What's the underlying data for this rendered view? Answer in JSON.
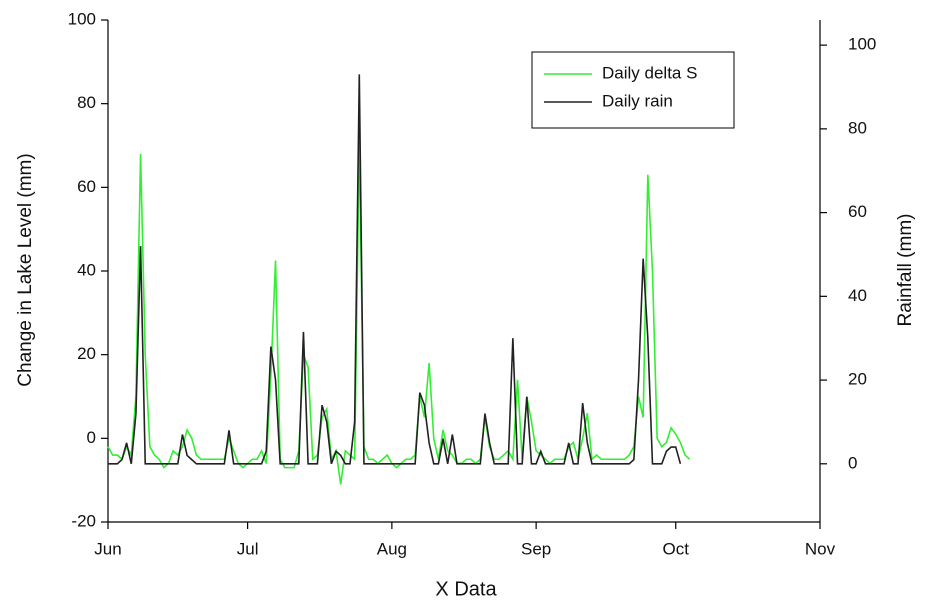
{
  "chart_data": {
    "type": "line",
    "x": [
      0,
      1,
      2,
      3,
      4,
      5,
      6,
      7,
      8,
      9,
      10,
      11,
      12,
      13,
      14,
      15,
      16,
      17,
      18,
      19,
      20,
      21,
      22,
      23,
      24,
      25,
      26,
      27,
      28,
      29,
      30,
      31,
      32,
      33,
      34,
      35,
      36,
      37,
      38,
      39,
      40,
      41,
      42,
      43,
      44,
      45,
      46,
      47,
      48,
      49,
      50,
      51,
      52,
      53,
      54,
      55,
      56,
      57,
      58,
      59,
      60,
      61,
      62,
      63,
      64,
      65,
      66,
      67,
      68,
      69,
      70,
      71,
      72,
      73,
      74,
      75,
      76,
      77,
      78,
      79,
      80,
      81,
      82,
      83,
      84,
      85,
      86,
      87,
      88,
      89,
      90,
      91,
      92,
      93,
      94,
      95,
      96,
      97,
      98,
      99,
      100,
      101,
      102,
      103,
      104,
      105,
      106,
      107,
      108,
      109,
      110,
      111,
      112,
      113,
      114,
      115,
      116,
      117,
      118,
      119,
      120,
      121,
      122,
      123,
      124,
      125
    ],
    "series": [
      {
        "name": "Daily delta S",
        "color": "#33ee33",
        "axis": "y",
        "values": [
          -2,
          -4,
          -4,
          -5,
          -2,
          -4,
          10,
          68,
          20,
          -2,
          -4,
          -5,
          -7,
          -6,
          -3,
          -4,
          -2,
          2,
          0,
          -4,
          -5,
          -5,
          -5,
          -5,
          -5,
          -5,
          0,
          -3,
          -6,
          -7,
          -6,
          -5,
          -5,
          -3,
          -6,
          15,
          42.5,
          -5,
          -7,
          -7,
          -7,
          -3,
          20,
          17,
          -5,
          -4,
          5,
          7,
          -5,
          -3,
          -11,
          -3,
          -4,
          -5,
          71,
          -2,
          -5,
          -5,
          -6,
          -5,
          -4,
          -6,
          -7,
          -6,
          -5,
          -5,
          -4,
          10,
          5,
          18,
          0,
          -5,
          2,
          -3,
          -4,
          -6,
          -6,
          -5,
          -5,
          -6,
          -5,
          5,
          -2,
          -5,
          -5,
          -4,
          -3,
          -5,
          14,
          -5,
          10,
          4,
          -3,
          -4,
          -5,
          -6,
          -5,
          -5,
          -5,
          -2,
          -1,
          -5,
          0,
          6,
          -5,
          -4,
          -5,
          -5,
          -5,
          -5,
          -5,
          -5,
          -4,
          -2,
          10,
          5,
          63,
          40,
          0,
          -2,
          -1,
          2.5,
          1,
          -1,
          -4,
          -5
        ]
      },
      {
        "name": "Daily rain",
        "color": "#222222",
        "axis": "y2",
        "values": [
          0,
          0,
          0,
          1,
          5,
          0,
          12,
          52,
          0,
          0,
          0,
          0,
          0,
          0,
          0,
          0,
          7,
          2,
          1,
          0,
          0,
          0,
          0,
          0,
          0,
          0,
          8,
          0,
          0,
          0,
          0,
          0,
          0,
          0,
          3,
          28,
          20,
          0,
          0,
          0,
          0,
          0,
          31.5,
          0,
          0,
          0,
          14,
          10,
          0,
          3,
          2,
          0,
          0,
          10,
          93,
          0,
          0,
          0,
          0,
          0,
          0,
          0,
          0,
          0,
          0,
          0,
          0,
          17,
          14,
          5,
          0,
          0,
          6,
          0,
          7,
          0,
          0,
          0,
          0,
          0,
          0,
          12,
          5,
          0,
          0,
          0,
          0,
          30,
          0,
          0,
          16,
          0,
          0,
          3,
          0,
          0,
          0,
          0,
          0,
          5,
          0,
          0,
          14.5,
          5,
          0,
          0,
          0,
          0,
          0,
          0,
          0,
          0,
          0,
          1,
          20,
          49,
          30,
          0,
          0,
          0,
          3,
          4,
          4,
          0,
          null,
          null
        ]
      }
    ],
    "xlabel": "X Data",
    "ylabel": "Change in Lake Level (mm)",
    "y2label": "Rainfall (mm)",
    "xlim": [
      0,
      153
    ],
    "xticks": [
      {
        "value": 0,
        "label": "Jun"
      },
      {
        "value": 30,
        "label": "Jul"
      },
      {
        "value": 61,
        "label": "Aug"
      },
      {
        "value": 92,
        "label": "Sep"
      },
      {
        "value": 122,
        "label": "Oct"
      },
      {
        "value": 153,
        "label": "Nov"
      }
    ],
    "ylim": [
      -20,
      100
    ],
    "yticks": [
      -20,
      0,
      20,
      40,
      60,
      80,
      100
    ],
    "y2lim": [
      -13.9,
      106
    ],
    "y2ticks": [
      0,
      20,
      40,
      60,
      80,
      100
    ],
    "legend": "upper right"
  }
}
